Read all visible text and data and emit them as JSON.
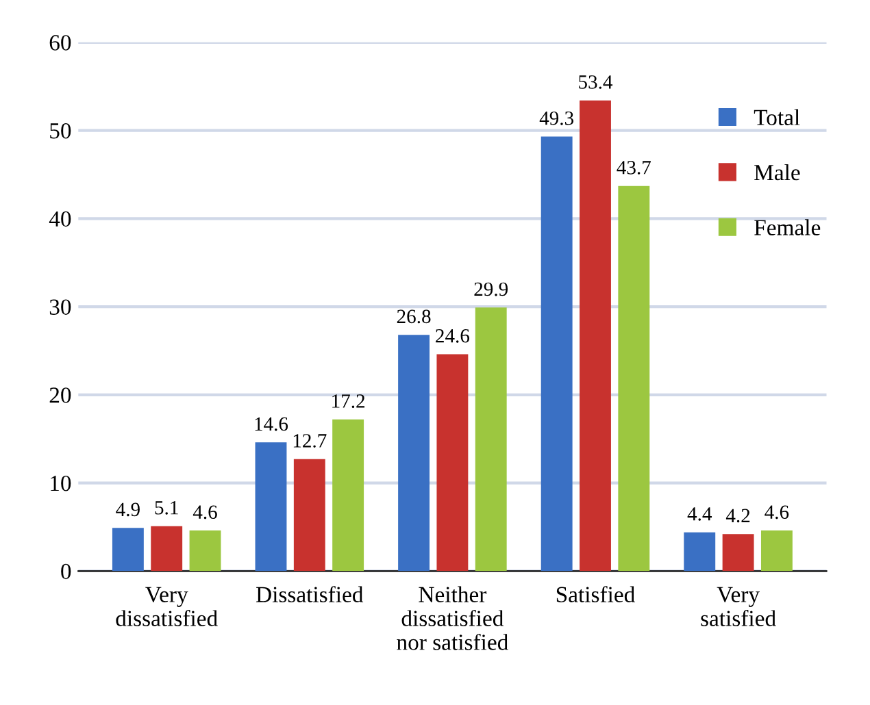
{
  "chart_data": {
    "type": "bar",
    "categories": [
      "Very\ndissatisfied",
      "Dissatisfied",
      "Neither\ndissatisfied\nnor satisfied",
      "Satisfied",
      "Very\nsatisfied"
    ],
    "series": [
      {
        "name": "Total",
        "color": "#3a70c4",
        "values": [
          4.9,
          14.6,
          26.8,
          49.3,
          4.4
        ]
      },
      {
        "name": "Male",
        "color": "#c8322e",
        "values": [
          5.1,
          12.7,
          24.6,
          53.4,
          4.2
        ]
      },
      {
        "name": "Female",
        "color": "#9cc740",
        "values": [
          4.6,
          17.2,
          29.9,
          43.7,
          4.6
        ]
      }
    ],
    "ylim": [
      0,
      60
    ],
    "yticks": [
      0,
      10,
      20,
      30,
      40,
      50,
      60
    ],
    "grid": "y",
    "legend": "right",
    "data_labels": true
  }
}
